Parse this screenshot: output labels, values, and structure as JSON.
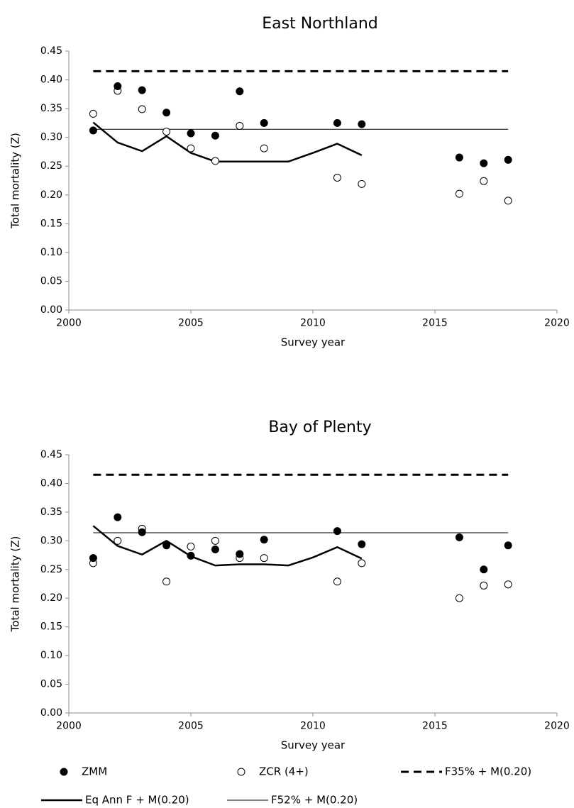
{
  "chart_data": [
    {
      "type": "scatter",
      "title": "East Northland",
      "xlabel": "Survey year",
      "ylabel": "Total mortality (Z)",
      "xlim": [
        2000,
        2020
      ],
      "ylim": [
        0,
        0.45
      ],
      "x_ticks": [
        "2000",
        "2005",
        "2010",
        "2015",
        "2020"
      ],
      "y_ticks": [
        "0.00",
        "0.05",
        "0.10",
        "0.15",
        "0.20",
        "0.25",
        "0.30",
        "0.35",
        "0.40",
        "0.45"
      ],
      "grid": false,
      "series": [
        {
          "name": "ZMM",
          "style": "filled-circle",
          "x": [
            2001,
            2002,
            2003,
            2004,
            2005,
            2006,
            2007,
            2008,
            2011,
            2012,
            2016,
            2017,
            2018
          ],
          "y": [
            0.312,
            0.389,
            0.382,
            0.343,
            0.307,
            0.303,
            0.38,
            0.325,
            0.325,
            0.323,
            0.265,
            0.255,
            0.261
          ]
        },
        {
          "name": "ZCR (4+)",
          "style": "open-circle",
          "x": [
            2001,
            2002,
            2003,
            2004,
            2005,
            2006,
            2007,
            2008,
            2011,
            2012,
            2016,
            2017,
            2018
          ],
          "y": [
            0.341,
            0.381,
            0.349,
            0.31,
            0.281,
            0.259,
            0.32,
            0.281,
            0.23,
            0.219,
            0.202,
            0.224,
            0.19
          ]
        },
        {
          "name": "F35% + M(0.20)",
          "style": "dashed-line",
          "x": [
            2001,
            2018
          ],
          "y": [
            0.415,
            0.415
          ]
        },
        {
          "name": "Eq Ann F + M(0.20)",
          "style": "thick-line",
          "x": [
            2001,
            2002,
            2003,
            2004,
            2005,
            2006,
            2007,
            2008,
            2009,
            2010,
            2011,
            2012
          ],
          "y": [
            0.326,
            0.291,
            0.276,
            0.302,
            0.273,
            0.258,
            0.258,
            0.258,
            0.258,
            0.273,
            0.289,
            0.269
          ]
        },
        {
          "name": "F52% + M(0.20)",
          "style": "thin-line",
          "x": [
            2001,
            2018
          ],
          "y": [
            0.314,
            0.314
          ]
        }
      ]
    },
    {
      "type": "scatter",
      "title": "Bay of Plenty",
      "xlabel": "Survey year",
      "ylabel": "Total mortality (Z)",
      "xlim": [
        2000,
        2020
      ],
      "ylim": [
        0,
        0.45
      ],
      "x_ticks": [
        "2000",
        "2005",
        "2010",
        "2015",
        "2020"
      ],
      "y_ticks": [
        "0.00",
        "0.05",
        "0.10",
        "0.15",
        "0.20",
        "0.25",
        "0.30",
        "0.35",
        "0.40",
        "0.45"
      ],
      "grid": false,
      "series": [
        {
          "name": "ZMM",
          "style": "filled-circle",
          "x": [
            2001,
            2002,
            2003,
            2004,
            2005,
            2006,
            2007,
            2008,
            2011,
            2012,
            2016,
            2017,
            2018
          ],
          "y": [
            0.27,
            0.341,
            0.315,
            0.292,
            0.274,
            0.285,
            0.277,
            0.302,
            0.317,
            0.294,
            0.306,
            0.25,
            0.292
          ]
        },
        {
          "name": "ZCR (4+)",
          "style": "open-circle",
          "x": [
            2001,
            2002,
            2003,
            2004,
            2005,
            2006,
            2007,
            2008,
            2011,
            2012,
            2016,
            2017,
            2018
          ],
          "y": [
            0.261,
            0.3,
            0.321,
            0.229,
            0.29,
            0.3,
            0.27,
            0.27,
            0.229,
            0.261,
            0.2,
            0.222,
            0.224
          ]
        },
        {
          "name": "F35% + M(0.20)",
          "style": "dashed-line",
          "x": [
            2001,
            2018
          ],
          "y": [
            0.415,
            0.415
          ]
        },
        {
          "name": "Eq Ann F + M(0.20)",
          "style": "thick-line",
          "x": [
            2001,
            2002,
            2003,
            2004,
            2005,
            2006,
            2007,
            2008,
            2009,
            2010,
            2011,
            2012
          ],
          "y": [
            0.326,
            0.291,
            0.276,
            0.3,
            0.273,
            0.257,
            0.259,
            0.259,
            0.257,
            0.271,
            0.289,
            0.269
          ]
        },
        {
          "name": "F52% + M(0.20)",
          "style": "thin-line",
          "x": [
            2001,
            2018
          ],
          "y": [
            0.314,
            0.314
          ]
        }
      ]
    }
  ],
  "legend": {
    "placement": "bottom",
    "items": [
      {
        "label": "ZMM",
        "style": "filled-circle"
      },
      {
        "label": "ZCR (4+)",
        "style": "open-circle"
      },
      {
        "label": "F35% + M(0.20)",
        "style": "dashed-line"
      },
      {
        "label": "Eq Ann F + M(0.20)",
        "style": "thick-line"
      },
      {
        "label": "F52% + M(0.20)",
        "style": "thin-line"
      }
    ]
  }
}
